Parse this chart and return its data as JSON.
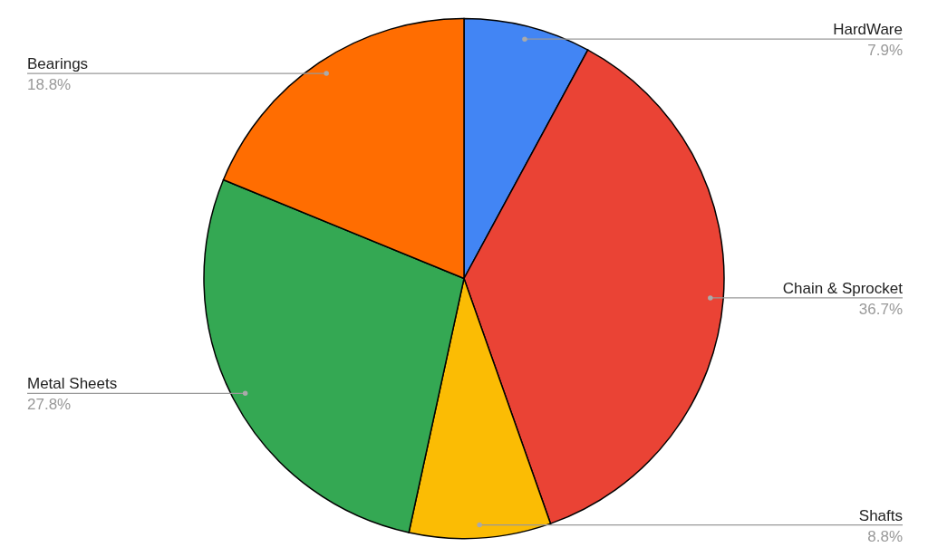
{
  "chart_data": {
    "type": "pie",
    "categories": [
      "HardWare",
      "Chain & Sprocket",
      "Shafts",
      "Metal Sheets",
      "Bearings"
    ],
    "values": [
      7.9,
      36.7,
      8.8,
      27.8,
      18.8
    ],
    "colors": [
      "#4285f4",
      "#ea4335",
      "#fbbc04",
      "#34a853",
      "#ff6d01"
    ],
    "value_labels": [
      "7.9%",
      "36.7%",
      "8.8%",
      "27.8%",
      "18.8%"
    ]
  }
}
